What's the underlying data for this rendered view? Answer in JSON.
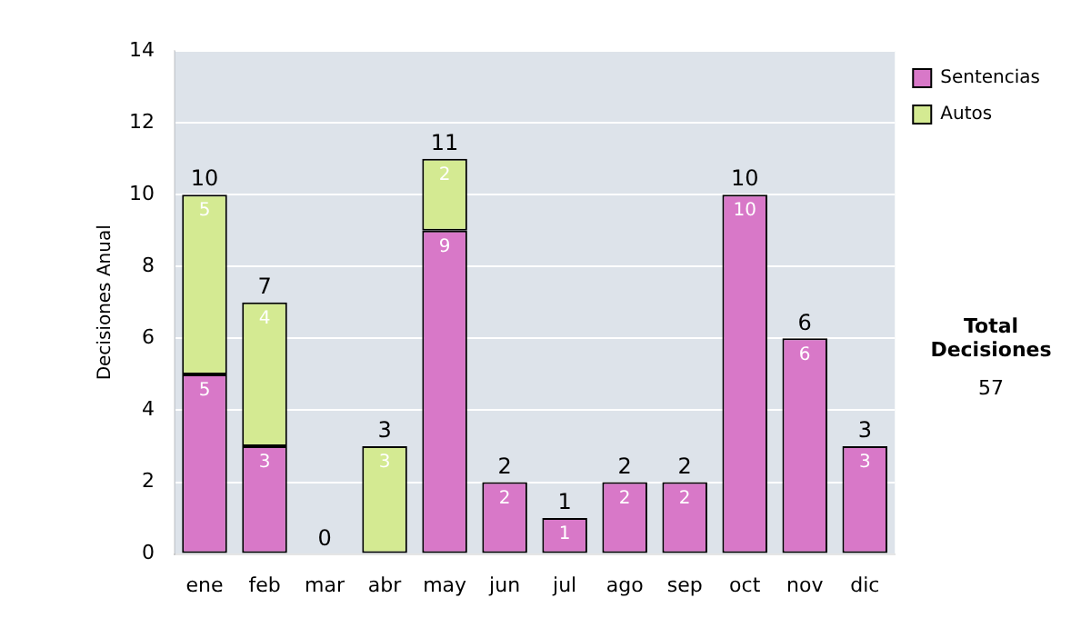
{
  "chart_data": {
    "type": "bar",
    "stacked": true,
    "ylabel": "Decisiones Anual",
    "categories": [
      "ene",
      "feb",
      "mar",
      "abr",
      "may",
      "jun",
      "jul",
      "ago",
      "sep",
      "oct",
      "nov",
      "dic"
    ],
    "series": [
      {
        "name": "Sentencias",
        "color": "#d878c8",
        "values": [
          5,
          3,
          0,
          0,
          9,
          2,
          1,
          2,
          2,
          10,
          6,
          3
        ],
        "value_labels": [
          "5",
          "3",
          null,
          null,
          "9",
          "2",
          "1",
          "2",
          "2",
          "10",
          "6",
          "3"
        ]
      },
      {
        "name": "Autos",
        "color": "#d4ea92",
        "values": [
          5,
          4,
          0,
          3,
          2,
          0,
          0,
          0,
          0,
          0,
          0,
          0
        ],
        "value_labels": [
          "5",
          "4",
          null,
          "3",
          "2",
          null,
          null,
          null,
          null,
          null,
          null,
          null
        ]
      }
    ],
    "totals": [
      "10",
      "7",
      "0",
      "3",
      "11",
      "2",
      "1",
      "2",
      "2",
      "10",
      "6",
      "3"
    ],
    "ylim": [
      0,
      14
    ],
    "yticks": [
      0,
      2,
      4,
      6,
      8,
      10,
      12,
      14
    ],
    "grid": "y",
    "legend": "right",
    "annotations": [
      "Total Decisiones",
      "57"
    ]
  }
}
